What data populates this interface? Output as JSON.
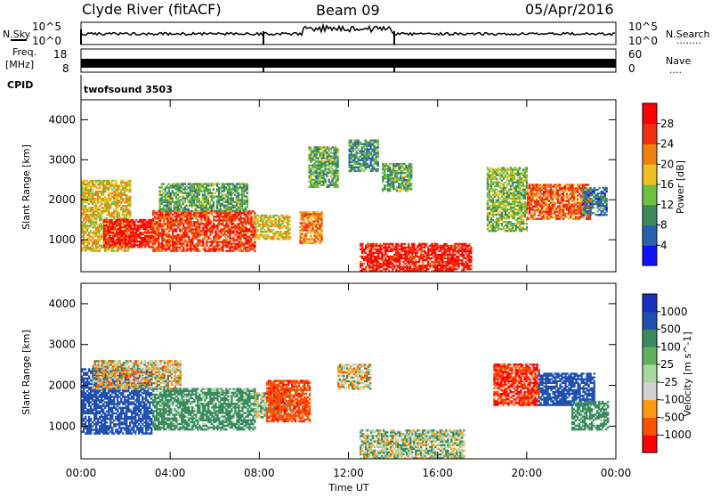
{
  "header": {
    "station": "Clyde River (fitACF)",
    "beam": "Beam 09",
    "date": "05/Apr/2016"
  },
  "left_labels": {
    "nsky": "N.Sky",
    "freq": "Freq.",
    "freq_unit": "[MHz]",
    "cpid": "CPID"
  },
  "right_labels": {
    "nsearch": "N.Search",
    "nsearch_dots": "........",
    "nave": "Nave",
    "nave_dots": "...."
  },
  "noise_axis": {
    "top_left": "10^5",
    "bottom_left": "10^0",
    "top_right": "10^5",
    "bottom_right": "10^0"
  },
  "freq_axis": {
    "left_top": "18",
    "left_bottom": "8",
    "right_top": "60",
    "right_bottom": "0"
  },
  "cpid_text": "twofsound 3503",
  "colors": {
    "power": [
      "#1010ff",
      "#2a5fb0",
      "#3c8a5a",
      "#70c040",
      "#f0c020",
      "#f08010",
      "#f03010",
      "#ff0000"
    ],
    "velocity": [
      "#ff0000",
      "#ff5000",
      "#ff9a10",
      "#d2d2d2",
      "#a8d8a0",
      "#60b060",
      "#3a8a60",
      "#2050b0",
      "#1830c0"
    ]
  },
  "chart_data": [
    {
      "type": "heatmap",
      "name": "power",
      "ylabel": "Slant Range [km]",
      "xlabel": "",
      "ylim": [
        200,
        4500
      ],
      "xlim": [
        0,
        24
      ],
      "yticks": [
        "1000",
        "2000",
        "3000",
        "4000"
      ],
      "xticks": [
        "00:00",
        "04:00",
        "08:00",
        "12:00",
        "16:00",
        "20:00",
        "00:00"
      ],
      "colorbar_label": "Power [dB]",
      "colorbar_ticks": [
        "4",
        "8",
        "12",
        "16",
        "20",
        "24",
        "28"
      ],
      "regions": [
        {
          "t": [
            0.0,
            2.2
          ],
          "r": [
            700,
            2500
          ],
          "v": 18
        },
        {
          "t": [
            1.0,
            3.2
          ],
          "r": [
            800,
            1500
          ],
          "v": 28
        },
        {
          "t": [
            3.2,
            7.8
          ],
          "r": [
            700,
            1700
          ],
          "v": 26
        },
        {
          "t": [
            3.5,
            7.5
          ],
          "r": [
            1700,
            2400
          ],
          "v": 12
        },
        {
          "t": [
            7.8,
            9.4
          ],
          "r": [
            1000,
            1600
          ],
          "v": 18
        },
        {
          "t": [
            9.8,
            10.8
          ],
          "r": [
            900,
            1700
          ],
          "v": 22
        },
        {
          "t": [
            10.2,
            11.5
          ],
          "r": [
            2300,
            3300
          ],
          "v": 12
        },
        {
          "t": [
            12.0,
            13.3
          ],
          "r": [
            2700,
            3500
          ],
          "v": 10
        },
        {
          "t": [
            13.5,
            14.8
          ],
          "r": [
            2200,
            2900
          ],
          "v": 12
        },
        {
          "t": [
            12.5,
            17.5
          ],
          "r": [
            200,
            900
          ],
          "v": 28
        },
        {
          "t": [
            18.2,
            20.0
          ],
          "r": [
            1200,
            2800
          ],
          "v": 14
        },
        {
          "t": [
            20.0,
            22.8
          ],
          "r": [
            1500,
            2400
          ],
          "v": 24
        },
        {
          "t": [
            22.5,
            23.6
          ],
          "r": [
            1600,
            2300
          ],
          "v": 8
        }
      ]
    },
    {
      "type": "heatmap",
      "name": "velocity",
      "ylabel": "Slant Range [km]",
      "xlabel": "Time UT",
      "ylim": [
        200,
        4500
      ],
      "xlim": [
        0,
        24
      ],
      "yticks": [
        "1000",
        "2000",
        "3000",
        "4000"
      ],
      "xticks": [
        "00:00",
        "04:00",
        "08:00",
        "12:00",
        "16:00",
        "20:00",
        "00:00"
      ],
      "colorbar_label": "Velocity [m s^-1]",
      "colorbar_ticks": [
        "1000",
        "500",
        "100",
        "25",
        "-25",
        "-100",
        "-500",
        "-1000"
      ],
      "regions": [
        {
          "t": [
            0.0,
            3.2
          ],
          "r": [
            800,
            2400
          ],
          "v": 800
        },
        {
          "t": [
            0.5,
            4.5
          ],
          "r": [
            1900,
            2600
          ],
          "v": 0
        },
        {
          "t": [
            3.2,
            7.8
          ],
          "r": [
            900,
            1900
          ],
          "v": 200
        },
        {
          "t": [
            7.8,
            9.4
          ],
          "r": [
            1200,
            1800
          ],
          "v": 60
        },
        {
          "t": [
            8.3,
            10.3
          ],
          "r": [
            1100,
            2100
          ],
          "v": -400
        },
        {
          "t": [
            11.5,
            13.0
          ],
          "r": [
            1900,
            2500
          ],
          "v": 0
        },
        {
          "t": [
            12.5,
            17.2
          ],
          "r": [
            200,
            900
          ],
          "v": 60
        },
        {
          "t": [
            18.5,
            20.5
          ],
          "r": [
            1500,
            2500
          ],
          "v": -500
        },
        {
          "t": [
            20.5,
            23.0
          ],
          "r": [
            1500,
            2300
          ],
          "v": 800
        },
        {
          "t": [
            22.0,
            23.6
          ],
          "r": [
            900,
            1600
          ],
          "v": 200
        }
      ]
    }
  ]
}
